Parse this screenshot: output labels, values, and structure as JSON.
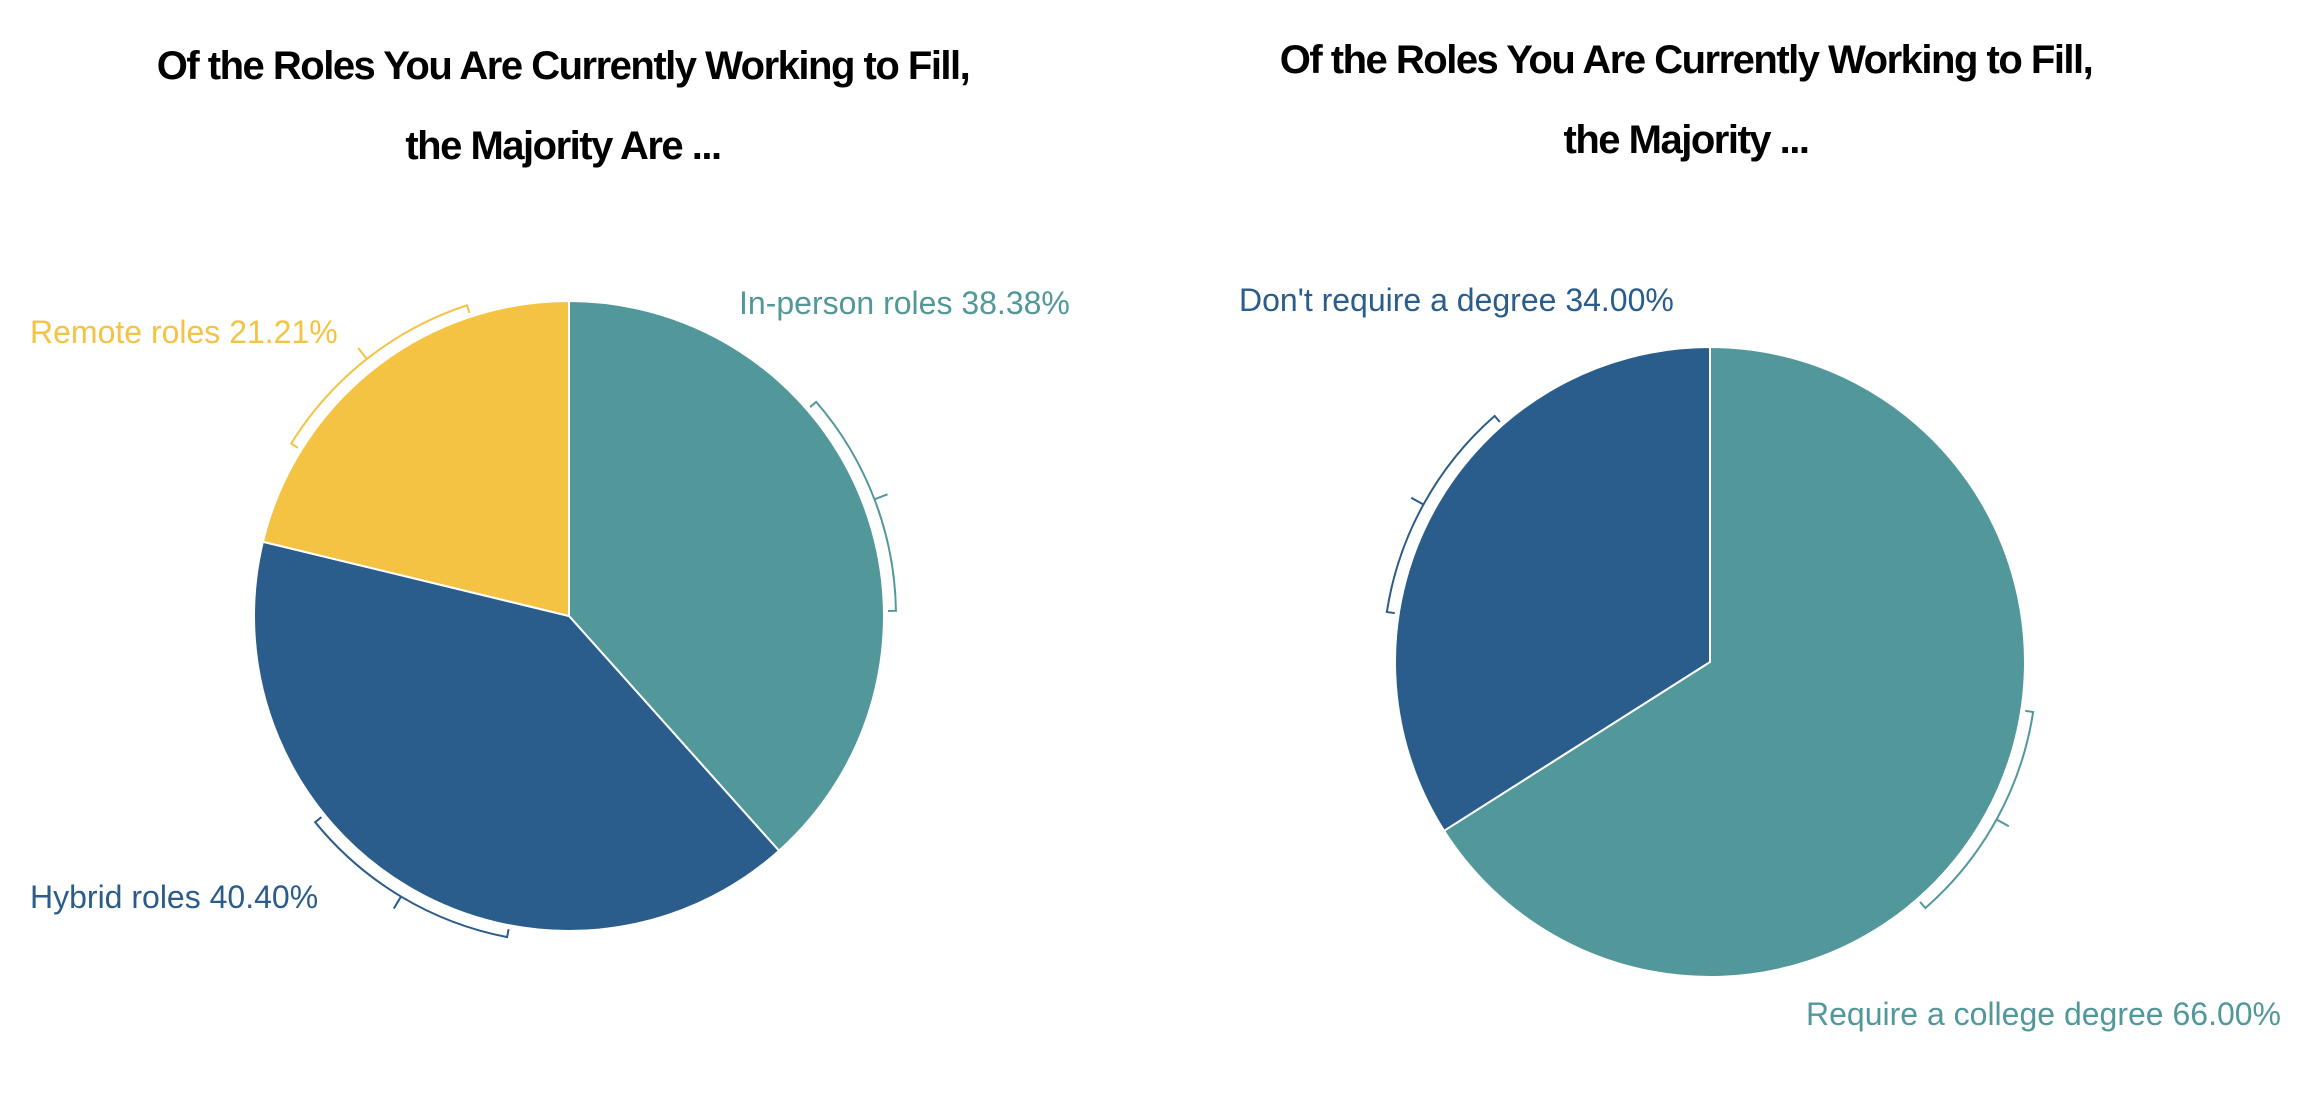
{
  "chart_data": [
    {
      "type": "pie",
      "title": "Of the Roles You Are Currently Working to Fill, the Majority Are ...",
      "categories": [
        "In-person roles",
        "Hybrid roles",
        "Remote roles"
      ],
      "values": [
        38.38,
        40.4,
        21.21
      ],
      "value_labels": [
        "38.38%",
        "40.40%",
        "21.21%"
      ],
      "colors": [
        "#52989a",
        "#2a5c8c",
        "#f4c343"
      ]
    },
    {
      "type": "pie",
      "title": "Of the Roles You Are Currently Working to Fill, the Majority ...",
      "categories": [
        "Require a college degree",
        "Don't require a degree"
      ],
      "values": [
        66.0,
        34.0
      ],
      "value_labels": [
        "66.00%",
        "34.00%"
      ],
      "colors": [
        "#52989a",
        "#2a5c8c"
      ]
    }
  ]
}
